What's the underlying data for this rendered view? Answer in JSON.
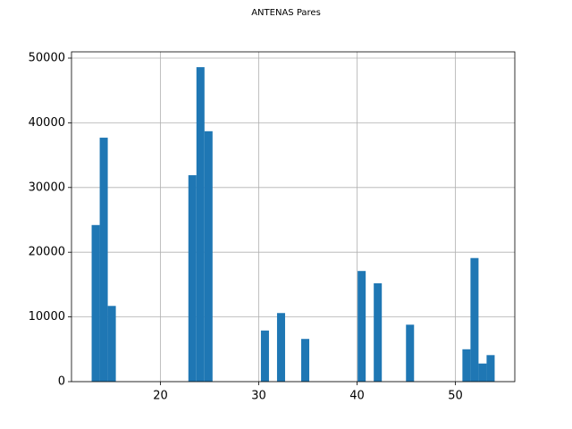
{
  "chart_data": {
    "type": "histogram",
    "title": "ANTENAS Pares",
    "bins": [
      13,
      13.82,
      14.64,
      15.46,
      16.28,
      17.1,
      17.92,
      18.74,
      19.56,
      20.38,
      21.2,
      22.02,
      22.84,
      23.66,
      24.48,
      25.3,
      26.12,
      26.94,
      27.76,
      28.58,
      29.4,
      30.22,
      31.04,
      31.86,
      32.68,
      33.5,
      34.32,
      35.14,
      35.96,
      36.78,
      37.6,
      38.42,
      39.24,
      40.06,
      40.88,
      41.7,
      42.52,
      43.34,
      44.16,
      44.98,
      45.8,
      46.62,
      47.44,
      48.26,
      49.08,
      49.9,
      50.72,
      51.54,
      52.36,
      53.18,
      54
    ],
    "counts": [
      24200,
      37700,
      11700,
      0,
      0,
      0,
      0,
      0,
      0,
      0,
      0,
      0,
      31900,
      48600,
      38700,
      0,
      0,
      0,
      0,
      0,
      0,
      7900,
      0,
      10600,
      0,
      0,
      6600,
      0,
      0,
      0,
      0,
      0,
      0,
      17100,
      0,
      15200,
      0,
      0,
      0,
      8800,
      0,
      0,
      0,
      0,
      0,
      0,
      5000,
      19100,
      2800,
      4100
    ],
    "color": "#1f77b4",
    "xlim": [
      10.95,
      56.05
    ],
    "xticks": [
      20,
      30,
      40,
      50
    ],
    "ylim": [
      0,
      50967
    ],
    "yticks": [
      0,
      10000,
      20000,
      30000,
      40000,
      50000
    ],
    "grid": true
  }
}
